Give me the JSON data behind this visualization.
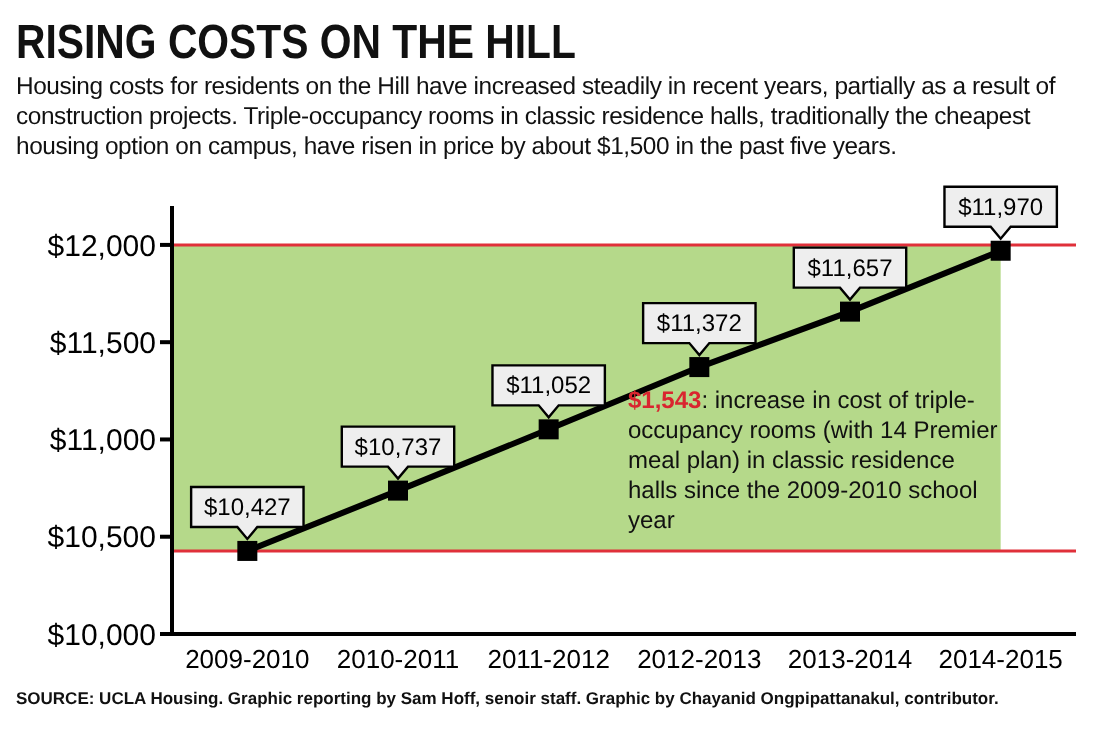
{
  "chart_data": {
    "type": "line",
    "title": "RISING COSTS ON THE HILL",
    "subtitle": "Housing costs for residents on the Hill have increased steadily in recent years, partially as a result of construction projects. Triple-occupancy rooms in classic residence halls, traditionally the cheapest housing option on campus, have risen in price by about $1,500 in the past five years.",
    "categories": [
      "2009-2010",
      "2010-2011",
      "2011-2012",
      "2012-2013",
      "2013-2014",
      "2014-2015"
    ],
    "series": [
      {
        "color": "#000000",
        "values": [
          10427,
          10737,
          11052,
          11372,
          11657,
          11970
        ],
        "value_labels": [
          "$10,427",
          "$10,737",
          "$11,052",
          "$11,372",
          "$11,657",
          "$11,970"
        ]
      }
    ],
    "marker": "square",
    "line_style": "solid",
    "grid": false,
    "legend": false,
    "ylim": [
      10000,
      12200
    ],
    "yticks": [
      {
        "value": 10000,
        "label": "$10,000"
      },
      {
        "value": 10500,
        "label": "$10,500"
      },
      {
        "value": 11000,
        "label": "$11,000"
      },
      {
        "value": 11500,
        "label": "$11,500"
      },
      {
        "value": 12000,
        "label": "$12,000"
      }
    ],
    "bands": [
      {
        "axis": "y",
        "from": 10427,
        "to": 12000,
        "color": "#b5d98a"
      }
    ],
    "ref_lines": [
      {
        "axis": "y",
        "value": 10427,
        "color": "#e0303a"
      },
      {
        "axis": "y",
        "value": 12000,
        "color": "#e0303a"
      }
    ],
    "annotations": [
      "$1,543: increase in cost of triple-occupancy rooms (with 14 Premier meal plan) in classic residence halls since the 2009-2010 school year",
      "SOURCE: UCLA Housing. Graphic reporting by Sam Hoff, senoir staff. Graphic by Chayanid Ongpipattanakul, contributor."
    ]
  }
}
